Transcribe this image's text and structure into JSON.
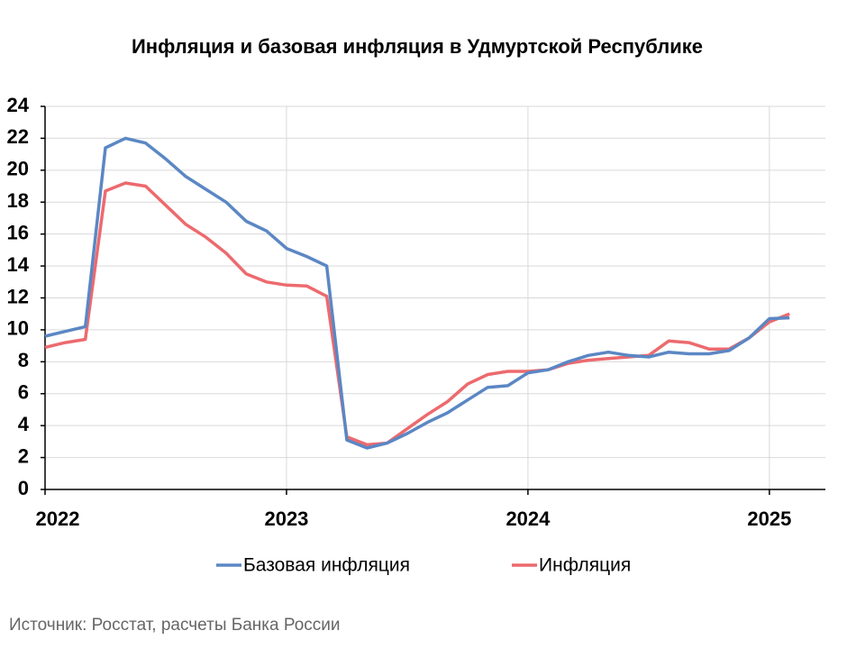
{
  "chart_data": {
    "type": "line",
    "title": "Инфляция и базовая инфляция в Удмуртской Республике",
    "source": "Источник: Росстат, расчеты Банка России",
    "categories": [
      "2022",
      null,
      null,
      null,
      null,
      null,
      null,
      null,
      null,
      null,
      null,
      null,
      "2023",
      null,
      null,
      null,
      null,
      null,
      null,
      null,
      null,
      null,
      null,
      null,
      "2024",
      null,
      null,
      null,
      null,
      null,
      null,
      null,
      null,
      null,
      null,
      null,
      "2025",
      null
    ],
    "series": [
      {
        "name": "Базовая инфляция",
        "color": "#5b87c4",
        "values": [
          9.6,
          9.9,
          10.2,
          21.4,
          22.0,
          21.7,
          20.7,
          19.6,
          18.8,
          18.0,
          16.8,
          16.2,
          15.1,
          14.6,
          14.0,
          3.1,
          2.6,
          2.9,
          3.5,
          4.2,
          4.8,
          5.6,
          6.4,
          6.5,
          7.3,
          7.5,
          8.0,
          8.4,
          8.6,
          8.4,
          8.3,
          8.6,
          8.5,
          8.5,
          8.7,
          9.5,
          10.7,
          10.75
        ]
      },
      {
        "name": "Инфляция",
        "color": "#ec6a6e",
        "values": [
          8.9,
          9.2,
          9.4,
          18.7,
          19.2,
          19.0,
          17.8,
          16.6,
          15.8,
          14.8,
          13.5,
          13.0,
          12.8,
          12.75,
          12.1,
          3.3,
          2.8,
          2.9,
          3.8,
          4.7,
          5.5,
          6.6,
          7.2,
          7.4,
          7.4,
          7.5,
          7.9,
          8.1,
          8.2,
          8.3,
          8.4,
          9.3,
          9.2,
          8.8,
          8.8,
          9.5,
          10.5,
          11.0
        ]
      }
    ],
    "ylim": [
      0,
      24
    ],
    "yticks": [
      0,
      2,
      4,
      6,
      8,
      10,
      12,
      14,
      16,
      18,
      20,
      22,
      24
    ],
    "grid": true,
    "legend": "bottom"
  }
}
